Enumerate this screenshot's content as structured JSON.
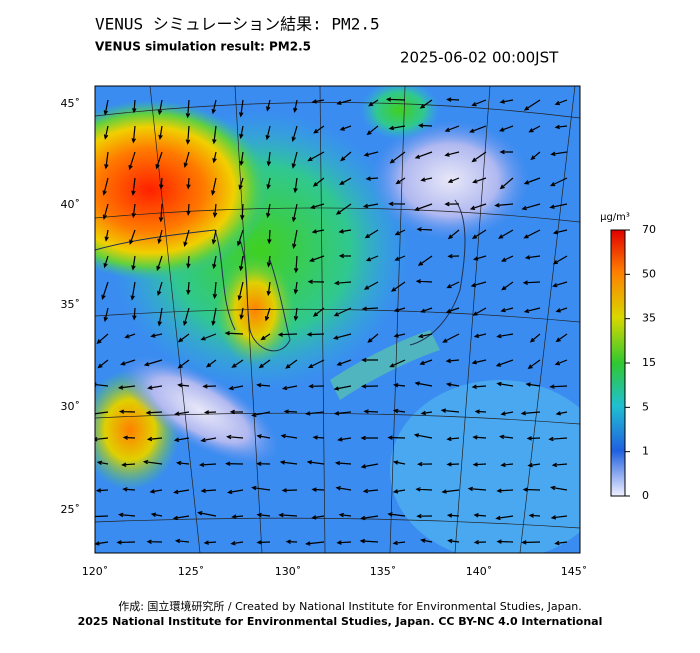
{
  "title_ja": "VENUS シミュレーション結果: PM2.5",
  "title_en": "VENUS simulation result: PM2.5",
  "timestamp": "2025-06-02 00:00JST",
  "map": {
    "lat_labels": [
      "45˚",
      "40˚",
      "35˚",
      "30˚",
      "25˚"
    ],
    "lon_labels": [
      "120˚",
      "125˚",
      "130˚",
      "135˚",
      "140˚",
      "145˚"
    ]
  },
  "colorbar": {
    "unit": "µg/m³",
    "ticks": [
      "70",
      "50",
      "35",
      "15",
      "5",
      "1",
      "0"
    ]
  },
  "footer": {
    "credit": "作成: 国立環境研究所 / Created by National Institute for Environmental Studies, Japan.",
    "copyright": "2025 National Institute for Environmental Studies, Japan. CC BY-NC 4.0 International"
  }
}
